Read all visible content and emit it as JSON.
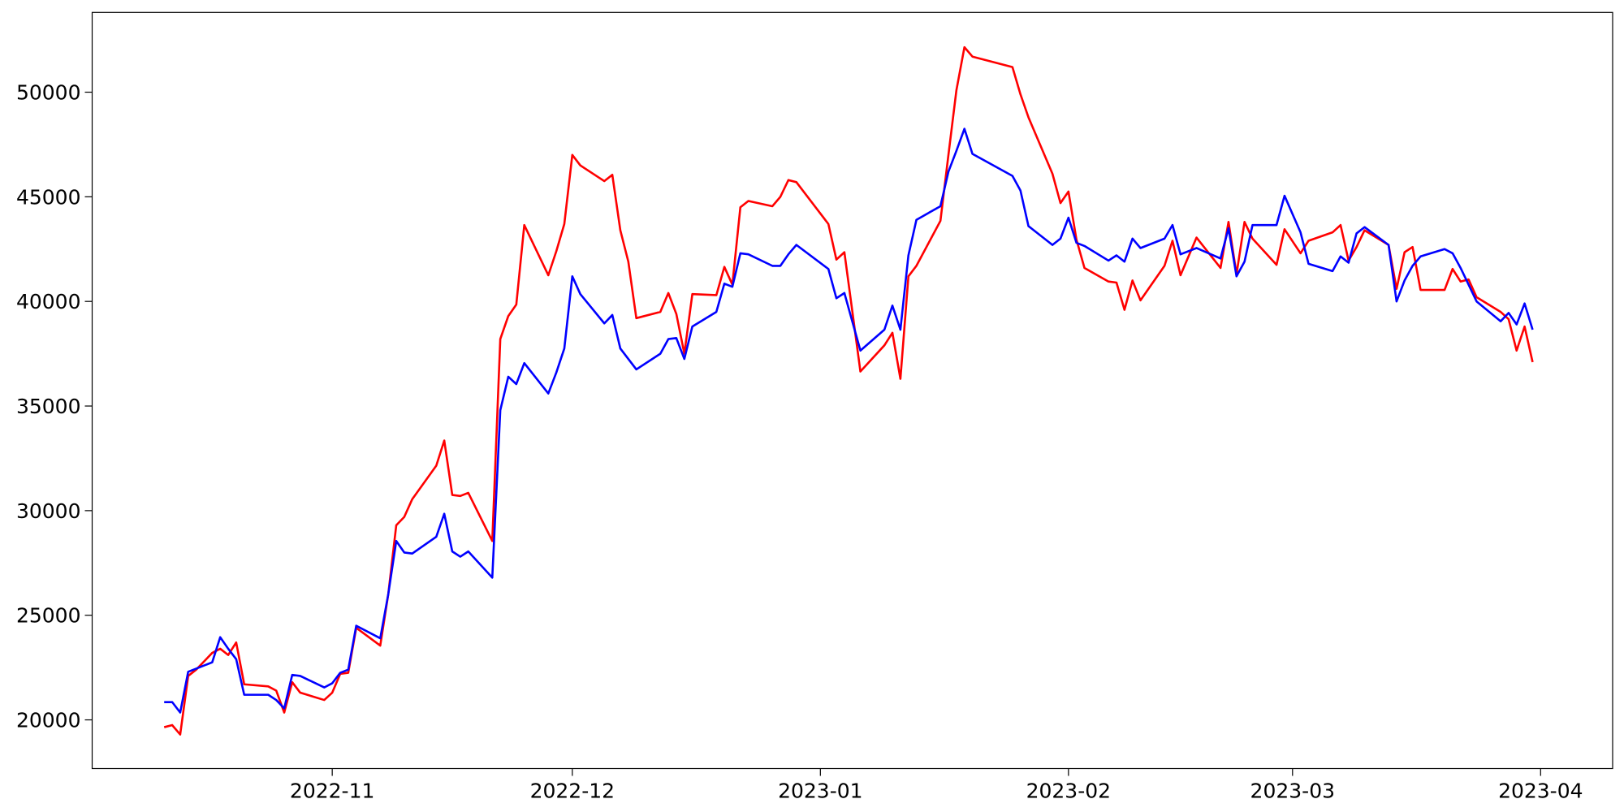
{
  "chart_data": {
    "type": "line",
    "x": [
      "2022-10-11",
      "2022-10-12",
      "2022-10-13",
      "2022-10-14",
      "2022-10-15",
      "2022-10-17",
      "2022-10-18",
      "2022-10-19",
      "2022-10-20",
      "2022-10-21",
      "2022-10-24",
      "2022-10-25",
      "2022-10-26",
      "2022-10-27",
      "2022-10-28",
      "2022-10-31",
      "2022-11-01",
      "2022-11-02",
      "2022-11-03",
      "2022-11-04",
      "2022-11-07",
      "2022-11-08",
      "2022-11-09",
      "2022-11-10",
      "2022-11-11",
      "2022-11-14",
      "2022-11-15",
      "2022-11-16",
      "2022-11-17",
      "2022-11-18",
      "2022-11-21",
      "2022-11-22",
      "2022-11-23",
      "2022-11-24",
      "2022-11-25",
      "2022-11-28",
      "2022-11-29",
      "2022-11-30",
      "2022-12-01",
      "2022-12-02",
      "2022-12-05",
      "2022-12-06",
      "2022-12-07",
      "2022-12-08",
      "2022-12-09",
      "2022-12-12",
      "2022-12-13",
      "2022-12-14",
      "2022-12-15",
      "2022-12-16",
      "2022-12-19",
      "2022-12-20",
      "2022-12-21",
      "2022-12-22",
      "2022-12-23",
      "2022-12-26",
      "2022-12-27",
      "2022-12-28",
      "2022-12-29",
      "2023-01-02",
      "2023-01-03",
      "2023-01-04",
      "2023-01-06",
      "2023-01-09",
      "2023-01-10",
      "2023-01-11",
      "2023-01-12",
      "2023-01-13",
      "2023-01-16",
      "2023-01-17",
      "2023-01-18",
      "2023-01-19",
      "2023-01-20",
      "2023-01-25",
      "2023-01-26",
      "2023-01-27",
      "2023-01-30",
      "2023-01-31",
      "2023-02-01",
      "2023-02-02",
      "2023-02-03",
      "2023-02-06",
      "2023-02-07",
      "2023-02-08",
      "2023-02-09",
      "2023-02-10",
      "2023-02-13",
      "2023-02-14",
      "2023-02-15",
      "2023-02-17",
      "2023-02-20",
      "2023-02-21",
      "2023-02-22",
      "2023-02-23",
      "2023-02-24",
      "2023-02-27",
      "2023-02-28",
      "2023-03-02",
      "2023-03-03",
      "2023-03-06",
      "2023-03-07",
      "2023-03-08",
      "2023-03-09",
      "2023-03-10",
      "2023-03-13",
      "2023-03-14",
      "2023-03-15",
      "2023-03-16",
      "2023-03-17",
      "2023-03-20",
      "2023-03-21",
      "2023-03-22",
      "2023-03-23",
      "2023-03-24",
      "2023-03-27",
      "2023-03-28",
      "2023-03-29",
      "2023-03-30",
      "2023-03-31"
    ],
    "series": [
      {
        "color": "#ff0000",
        "values": [
          19650,
          19750,
          19300,
          22100,
          22400,
          23200,
          23400,
          23100,
          23700,
          21700,
          21600,
          21400,
          20350,
          21800,
          21300,
          20950,
          21300,
          22200,
          22250,
          24400,
          23550,
          26000,
          29300,
          29700,
          30550,
          32150,
          33350,
          30750,
          30700,
          30850,
          28550,
          38200,
          39300,
          39850,
          43650,
          41250,
          42400,
          43700,
          47000,
          46500,
          45750,
          46050,
          43400,
          41900,
          39200,
          39500,
          40400,
          39400,
          37500,
          40350,
          40300,
          41650,
          40800,
          44500,
          44800,
          44550,
          45000,
          45800,
          45700,
          43700,
          42000,
          42350,
          36650,
          37900,
          38500,
          36300,
          41200,
          41700,
          43850,
          47000,
          50100,
          52150,
          51700,
          51200,
          49900,
          48800,
          46100,
          44700,
          45250,
          42950,
          41600,
          40950,
          40900,
          39600,
          41000,
          40050,
          41700,
          42900,
          41250,
          43050,
          41600,
          43800,
          41300,
          43800,
          43000,
          41750,
          43450,
          42300,
          42900,
          43300,
          43650,
          41950,
          42600,
          43400,
          42700,
          40600,
          42350,
          42600,
          40550,
          40550,
          41550,
          40950,
          41050,
          40200,
          39500,
          39150,
          37650,
          38800,
          37100
        ]
      },
      {
        "color": "#0000ff",
        "values": [
          20850,
          20850,
          20350,
          22300,
          22450,
          22750,
          23950,
          23400,
          22900,
          21200,
          21200,
          20950,
          20550,
          22150,
          22100,
          21550,
          21750,
          22250,
          22400,
          24500,
          23900,
          26000,
          28550,
          28000,
          27950,
          28750,
          29850,
          28050,
          27800,
          28050,
          26800,
          34800,
          36400,
          36050,
          37050,
          35600,
          36600,
          37750,
          41200,
          40350,
          38950,
          39350,
          37750,
          37250,
          36750,
          37500,
          38200,
          38250,
          37250,
          38800,
          39500,
          40850,
          40700,
          42300,
          42250,
          41700,
          41700,
          42250,
          42700,
          41550,
          40150,
          40400,
          37650,
          38650,
          39800,
          38650,
          42200,
          43900,
          44550,
          46200,
          47200,
          48250,
          47050,
          46000,
          45300,
          43600,
          42700,
          43000,
          44000,
          42800,
          42650,
          41950,
          42200,
          41900,
          43000,
          42550,
          43000,
          43650,
          42250,
          42550,
          42050,
          43500,
          41200,
          41900,
          43650,
          43650,
          45050,
          43300,
          41800,
          41450,
          42150,
          41850,
          43250,
          43550,
          42700,
          40000,
          41000,
          41700,
          42150,
          42500,
          42300,
          41600,
          40800,
          40000,
          39050,
          39450,
          38900,
          39900,
          38650
        ]
      }
    ],
    "xlim": [
      "2022-10-02",
      "2023-04-10"
    ],
    "xticks": [
      {
        "value": "2022-11-01",
        "label": "2022-11"
      },
      {
        "value": "2022-12-01",
        "label": "2022-12"
      },
      {
        "value": "2023-01-01",
        "label": "2023-01"
      },
      {
        "value": "2023-02-01",
        "label": "2023-02"
      },
      {
        "value": "2023-03-01",
        "label": "2023-03"
      },
      {
        "value": "2023-04-01",
        "label": "2023-04"
      }
    ],
    "ylim": [
      17673,
      53812
    ],
    "yticks": [
      20000,
      25000,
      30000,
      35000,
      40000,
      45000,
      50000
    ],
    "grid": false
  }
}
